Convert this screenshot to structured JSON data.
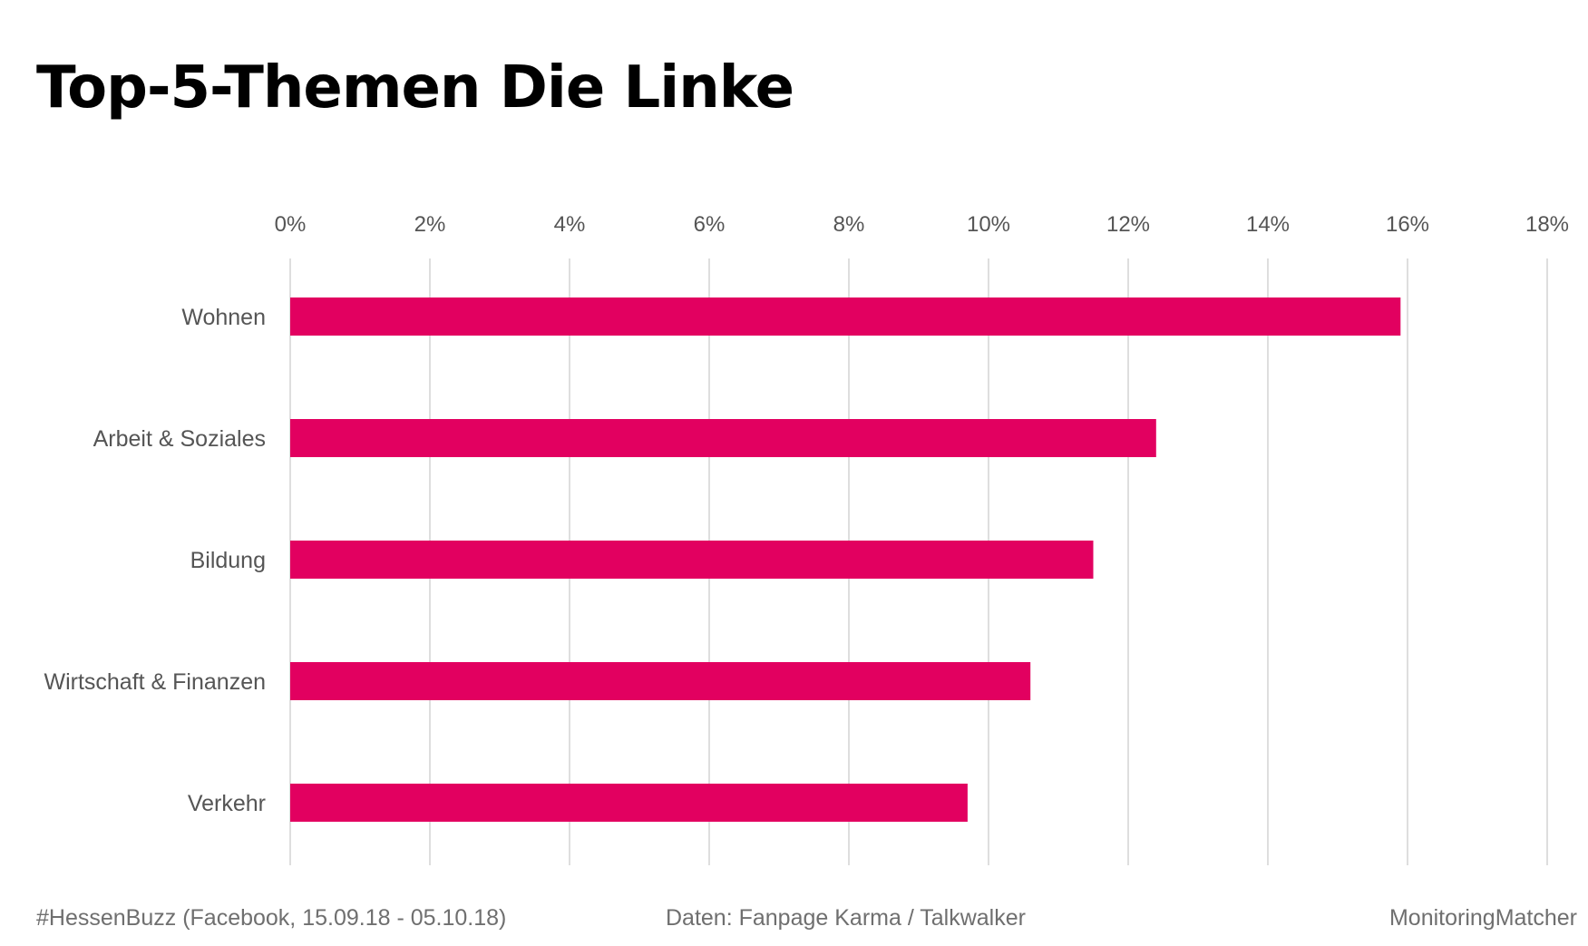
{
  "title": "Top-5-Themen Die Linke",
  "footer": {
    "left": "#HessenBuzz (Facebook, 15.09.18 - 05.10.18)",
    "center": "Daten: Fanpage Karma / Talkwalker",
    "right": "MonitoringMatcher"
  },
  "colors": {
    "bar": "#e20060",
    "grid": "#d4d4d4",
    "label": "#555555"
  },
  "chart_data": {
    "type": "bar",
    "orientation": "horizontal",
    "categories": [
      "Wohnen",
      "Arbeit & Soziales",
      "Bildung",
      "Wirtschaft & Finanzen",
      "Verkehr"
    ],
    "values": [
      15.9,
      12.4,
      11.5,
      10.6,
      9.7
    ],
    "value_unit": "%",
    "xlim": [
      0,
      18
    ],
    "xticks": [
      "0%",
      "2%",
      "4%",
      "6%",
      "8%",
      "10%",
      "12%",
      "14%",
      "16%",
      "18%"
    ],
    "x_axis_position": "top",
    "grid": true,
    "legend": "none"
  }
}
